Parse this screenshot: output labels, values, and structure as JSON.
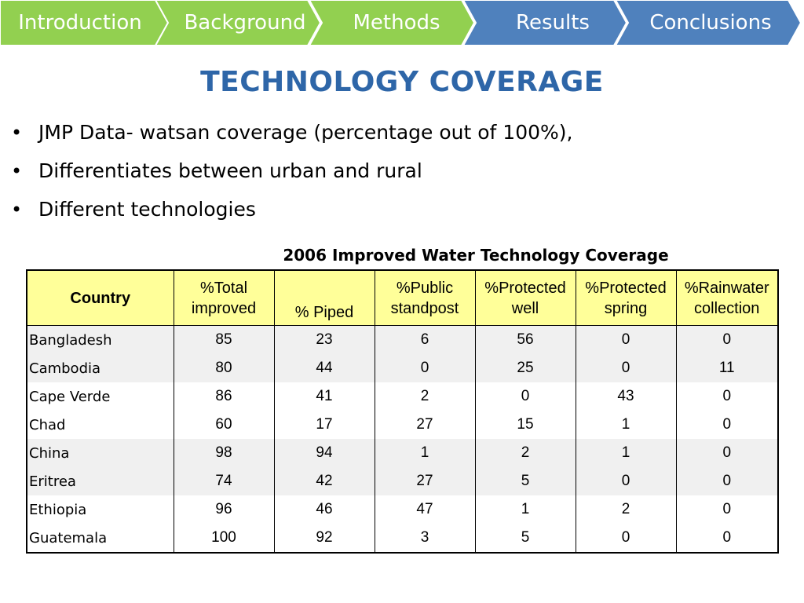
{
  "nav": {
    "items": [
      {
        "label": "Introduction",
        "color": "#92d050"
      },
      {
        "label": "Background",
        "color": "#92d050"
      },
      {
        "label": "Methods",
        "color": "#92d050"
      },
      {
        "label": "Results",
        "color": "#4f81bd"
      },
      {
        "label": "Conclusions",
        "color": "#4f81bd"
      }
    ]
  },
  "slide": {
    "title": "TECHNOLOGY COVERAGE",
    "bullets": [
      "JMP Data- watsan coverage (percentage out of 100%),",
      "Differentiates between urban and rural",
      "Different technologies"
    ],
    "bullet_symbol": "•"
  },
  "table": {
    "caption": "2006 Improved Water Technology Coverage",
    "header_color": "#ffff99",
    "headers": [
      {
        "line1": "Country",
        "line2": ""
      },
      {
        "line1": "%Total",
        "line2": "improved"
      },
      {
        "line1": "% Piped",
        "line2": ""
      },
      {
        "line1": "%Public",
        "line2": "standpost"
      },
      {
        "line1": "%Protected",
        "line2": "well"
      },
      {
        "line1": "%Protected",
        "line2": "spring"
      },
      {
        "line1": "%Rainwater",
        "line2": "collection"
      }
    ],
    "rows": [
      {
        "country": "Bangladesh",
        "cells": [
          "85",
          "23",
          "6",
          "56",
          "0",
          "0"
        ]
      },
      {
        "country": "Cambodia",
        "cells": [
          "80",
          "44",
          "0",
          "25",
          "0",
          "11"
        ]
      },
      {
        "country": "Cape Verde",
        "cells": [
          "86",
          "41",
          "2",
          "0",
          "43",
          "0"
        ]
      },
      {
        "country": "Chad",
        "cells": [
          "60",
          "17",
          "27",
          "15",
          "1",
          "0"
        ]
      },
      {
        "country": "China",
        "cells": [
          "98",
          "94",
          "1",
          "2",
          "1",
          "0"
        ]
      },
      {
        "country": "Eritrea",
        "cells": [
          "74",
          "42",
          "27",
          "5",
          "0",
          "0"
        ]
      },
      {
        "country": "Ethiopia",
        "cells": [
          "96",
          "46",
          "47",
          "1",
          "2",
          "0"
        ]
      },
      {
        "country": "Guatemala",
        "cells": [
          "100",
          "92",
          "3",
          "5",
          "0",
          "0"
        ]
      }
    ]
  }
}
